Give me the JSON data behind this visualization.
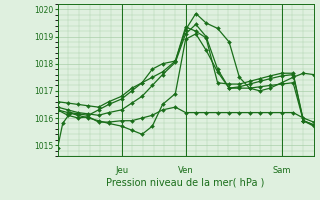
{
  "xlabel": "Pression niveau de la mer( hPa )",
  "bg_color": "#dff0df",
  "grid_color": "#aacfaa",
  "line_color": "#1a6e1a",
  "ylim": [
    1014.6,
    1020.2
  ],
  "yticks": [
    1015,
    1016,
    1017,
    1018,
    1019,
    1020
  ],
  "day_positions": [
    0.25,
    0.5,
    0.875
  ],
  "day_labels": [
    "Jeu",
    "Ven",
    "Sam"
  ],
  "ven_line": 0.5,
  "sam_line": 0.875,
  "series": [
    {
      "x": [
        0.0,
        0.02,
        0.05,
        0.08,
        0.12,
        0.16,
        0.2,
        0.25,
        0.29,
        0.33,
        0.37,
        0.41,
        0.46,
        0.5,
        0.54,
        0.58,
        0.625,
        0.67,
        0.71,
        0.75,
        0.79,
        0.83,
        0.875,
        0.92,
        0.96,
        1.0
      ],
      "y": [
        1014.9,
        1015.8,
        1016.2,
        1016.15,
        1016.1,
        1016.3,
        1016.5,
        1016.7,
        1017.0,
        1017.3,
        1017.8,
        1018.0,
        1018.1,
        1019.25,
        1019.85,
        1019.5,
        1019.3,
        1018.8,
        1017.5,
        1017.1,
        1017.0,
        1017.1,
        1017.3,
        1017.5,
        1017.65,
        1017.6
      ]
    },
    {
      "x": [
        0.0,
        0.04,
        0.08,
        0.12,
        0.16,
        0.2,
        0.25,
        0.29,
        0.33,
        0.37,
        0.41,
        0.46,
        0.5,
        0.54,
        0.58,
        0.625,
        0.67,
        0.71,
        0.75,
        0.79,
        0.83,
        0.875,
        0.92,
        0.96,
        1.0
      ],
      "y": [
        1016.4,
        1016.3,
        1016.2,
        1016.15,
        1016.1,
        1016.2,
        1016.3,
        1016.55,
        1016.8,
        1017.2,
        1017.6,
        1018.05,
        1019.1,
        1019.45,
        1019.0,
        1017.8,
        1017.1,
        1017.15,
        1017.25,
        1017.35,
        1017.45,
        1017.55,
        1017.6,
        1015.9,
        1015.75
      ]
    },
    {
      "x": [
        0.0,
        0.04,
        0.08,
        0.12,
        0.16,
        0.2,
        0.25,
        0.29,
        0.33,
        0.37,
        0.41,
        0.46,
        0.5,
        0.54,
        0.58,
        0.625,
        0.67,
        0.71,
        0.75,
        0.79,
        0.83,
        0.875,
        0.92,
        0.96,
        1.0
      ],
      "y": [
        1016.3,
        1016.2,
        1016.1,
        1016.0,
        1015.9,
        1015.8,
        1015.7,
        1015.55,
        1015.4,
        1015.7,
        1016.5,
        1016.9,
        1018.9,
        1019.1,
        1018.5,
        1017.7,
        1017.1,
        1017.1,
        1017.1,
        1017.15,
        1017.2,
        1017.25,
        1017.3,
        1015.9,
        1015.75
      ]
    },
    {
      "x": [
        0.0,
        0.04,
        0.08,
        0.12,
        0.16,
        0.2,
        0.25,
        0.29,
        0.33,
        0.37,
        0.41,
        0.46,
        0.5,
        0.54,
        0.58,
        0.625,
        0.67,
        0.71,
        0.75,
        0.79,
        0.83,
        0.875,
        0.92,
        0.96,
        1.0
      ],
      "y": [
        1016.3,
        1016.1,
        1016.0,
        1016.05,
        1015.85,
        1015.85,
        1015.9,
        1015.9,
        1016.0,
        1016.1,
        1016.3,
        1016.4,
        1016.2,
        1016.2,
        1016.2,
        1016.2,
        1016.2,
        1016.2,
        1016.2,
        1016.2,
        1016.2,
        1016.2,
        1016.2,
        1016.0,
        1015.85
      ]
    },
    {
      "x": [
        0.0,
        0.04,
        0.08,
        0.12,
        0.16,
        0.2,
        0.25,
        0.29,
        0.33,
        0.37,
        0.41,
        0.46,
        0.5,
        0.54,
        0.58,
        0.625,
        0.67,
        0.71,
        0.75,
        0.79,
        0.83,
        0.875,
        0.92,
        0.96,
        1.0
      ],
      "y": [
        1016.6,
        1016.55,
        1016.5,
        1016.45,
        1016.4,
        1016.6,
        1016.8,
        1017.1,
        1017.3,
        1017.5,
        1017.7,
        1018.1,
        1019.35,
        1019.2,
        1018.95,
        1017.3,
        1017.25,
        1017.25,
        1017.35,
        1017.45,
        1017.55,
        1017.65,
        1017.65,
        1015.9,
        1015.7
      ]
    }
  ],
  "marker": "D",
  "marker_size": 2.0,
  "linewidth": 0.9
}
